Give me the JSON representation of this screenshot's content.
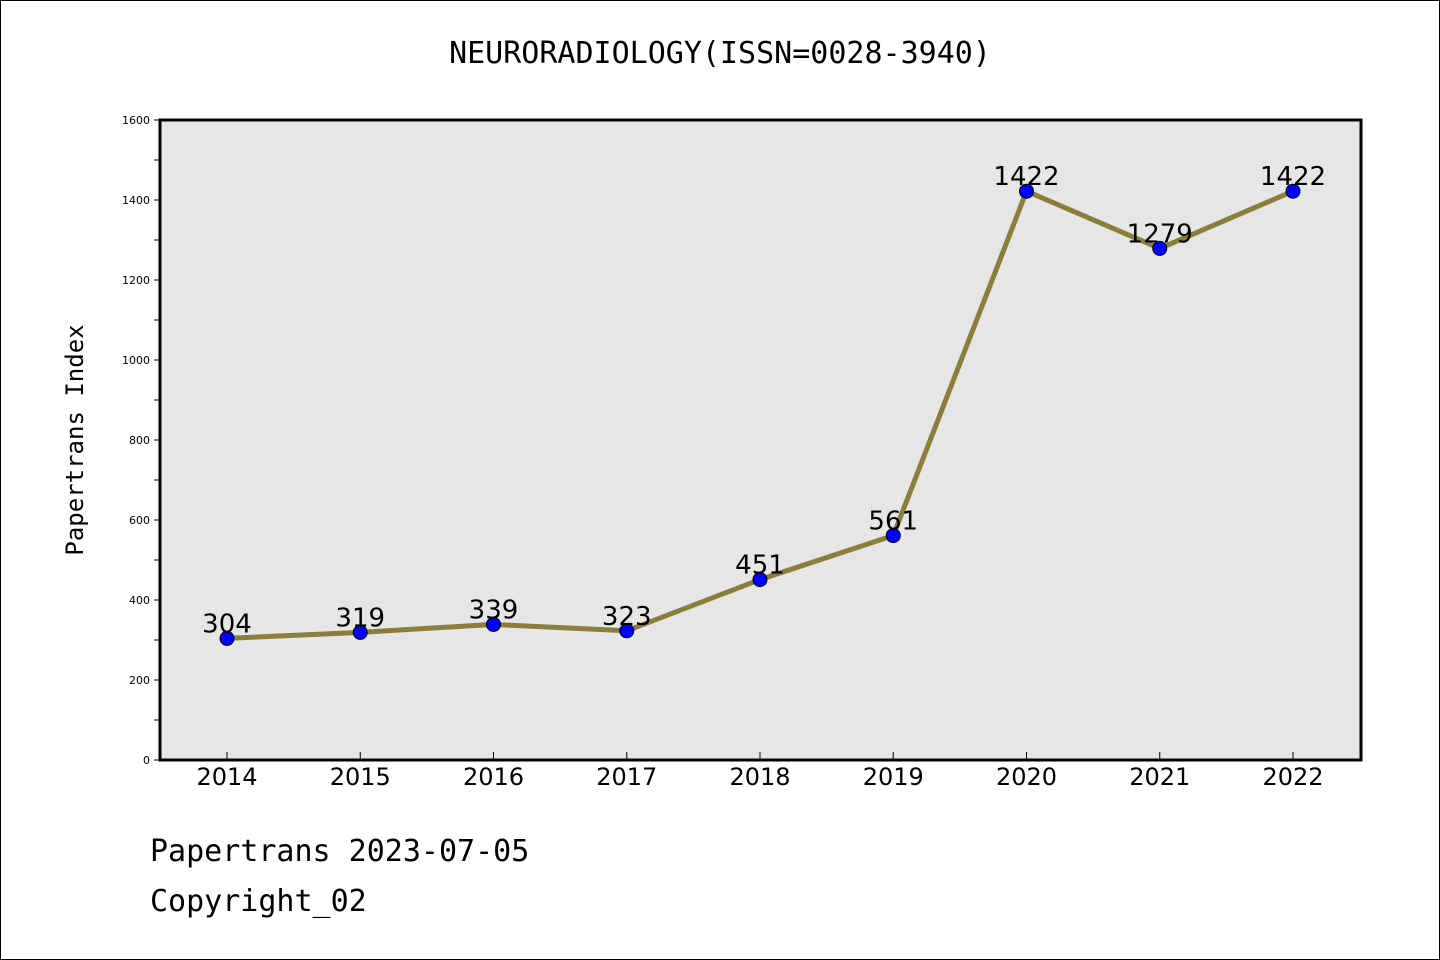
{
  "chart_data": {
    "type": "line",
    "title": "NEURORADIOLOGY(ISSN=0028-3940)",
    "ylabel": "Papertrans Index",
    "xlabel": "",
    "categories": [
      "2014",
      "2015",
      "2016",
      "2017",
      "2018",
      "2019",
      "2020",
      "2021",
      "2022"
    ],
    "series": [
      {
        "values": [
          304,
          319,
          339,
          323,
          451,
          561,
          1422,
          1279,
          1422
        ]
      }
    ],
    "ylim": [
      0,
      1600
    ],
    "yticks": [
      0,
      200,
      400,
      600,
      800,
      1000,
      1200,
      1400,
      1600
    ],
    "grid": false,
    "colors": {
      "line": "#8b7d3a",
      "marker": "#0000ff",
      "plot_background": "#e6e6e6"
    }
  },
  "footer": {
    "line1": "Papertrans 2023-07-05",
    "line2": "Copyright_02"
  }
}
